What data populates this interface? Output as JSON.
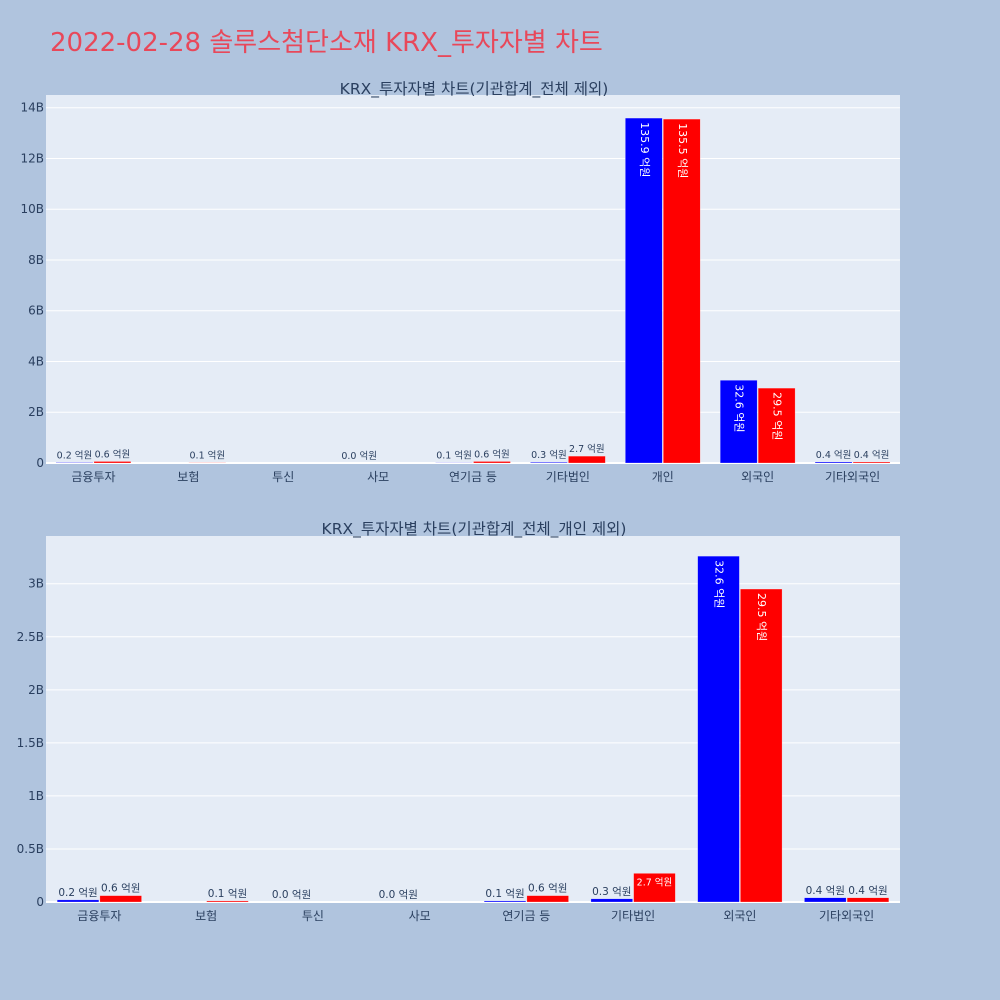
{
  "page": {
    "title": "2022-02-28 솔루스첨단소재 KRX_투자자별 차트"
  },
  "colors": {
    "background": "#b0c4de",
    "plot_bg": "#e5ecf6",
    "title": "#e8485a",
    "series_buy": "#0000ff",
    "series_sell": "#ff0000"
  },
  "chart_data": [
    {
      "type": "bar",
      "title": "KRX_투자자별 차트(기관합계_전체 제외)",
      "xlabel": "",
      "ylabel": "",
      "grid": true,
      "ylim": [
        0,
        14500000000
      ],
      "yticks": [
        0,
        2000000000,
        4000000000,
        6000000000,
        8000000000,
        10000000000,
        12000000000,
        14000000000
      ],
      "ytick_labels": [
        "0",
        "2B",
        "4B",
        "6B",
        "8B",
        "10B",
        "12B",
        "14B"
      ],
      "categories": [
        "금융투자",
        "보험",
        "투신",
        "사모",
        "연기금 등",
        "기타법인",
        "개인",
        "외국인",
        "기타외국인"
      ],
      "series": [
        {
          "color": "#0000ff",
          "values": [
            20000000,
            0,
            0,
            0,
            10000000,
            30000000,
            13590000000,
            3260000000,
            40000000
          ],
          "labels": [
            "0.2 억원",
            "",
            "",
            "0.0 억원",
            "0.1 억원",
            "0.3 억원",
            "135.9 억원",
            "32.6 억원",
            "0.4 억원"
          ]
        },
        {
          "color": "#ff0000",
          "values": [
            60000000,
            10000000,
            0,
            0,
            60000000,
            270000000,
            13550000000,
            2950000000,
            40000000
          ],
          "labels": [
            "0.6 억원",
            "0.1 억원",
            "",
            "",
            "0.6 억원",
            "2.7 억원",
            "135.5 억원",
            "29.5 억원",
            "0.4 억원"
          ]
        }
      ]
    },
    {
      "type": "bar",
      "title": "KRX_투자자별 차트(기관합계_전체_개인 제외)",
      "xlabel": "",
      "ylabel": "",
      "grid": true,
      "ylim": [
        0,
        3450000000
      ],
      "yticks": [
        0,
        500000000,
        1000000000,
        1500000000,
        2000000000,
        2500000000,
        3000000000
      ],
      "ytick_labels": [
        "0",
        "0.5B",
        "1B",
        "1.5B",
        "2B",
        "2.5B",
        "3B"
      ],
      "categories": [
        "금융투자",
        "보험",
        "투신",
        "사모",
        "연기금 등",
        "기타법인",
        "외국인",
        "기타외국인"
      ],
      "series": [
        {
          "color": "#0000ff",
          "values": [
            20000000,
            0,
            0,
            0,
            10000000,
            30000000,
            3260000000,
            40000000
          ],
          "labels": [
            "0.2 억원",
            "",
            "0.0 억원",
            "0.0 억원",
            "0.1 억원",
            "0.3 억원",
            "32.6 억원",
            "0.4 억원"
          ]
        },
        {
          "color": "#ff0000",
          "values": [
            60000000,
            10000000,
            0,
            0,
            60000000,
            270000000,
            2950000000,
            40000000
          ],
          "labels": [
            "0.6 억원",
            "0.1 억원",
            "",
            "",
            "0.6 억원",
            "2.7 억원",
            "29.5 억원",
            "0.4 억원"
          ]
        }
      ]
    }
  ]
}
